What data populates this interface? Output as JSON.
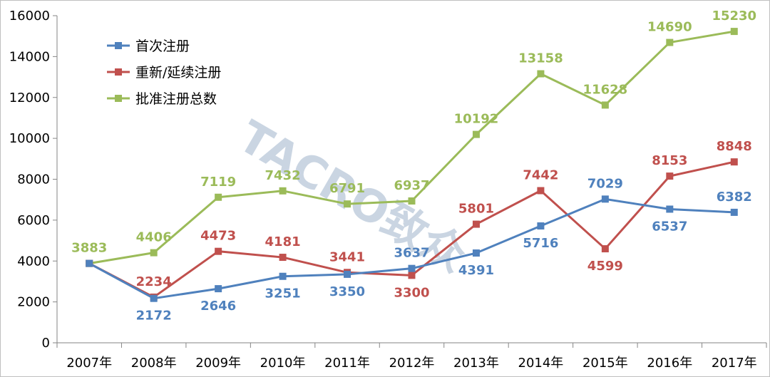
{
  "chart_data": {
    "type": "line",
    "categories": [
      "2007年",
      "2008年",
      "2009年",
      "2010年",
      "2011年",
      "2012年",
      "2013年",
      "2014年",
      "2015年",
      "2016年",
      "2017年"
    ],
    "series": [
      {
        "name": "首次注册",
        "color": "#4f81bd",
        "values": [
          3883,
          2172,
          2646,
          3251,
          3350,
          3637,
          4391,
          5716,
          7029,
          6537,
          6382
        ]
      },
      {
        "name": "重新/延续注册",
        "color": "#c0504d",
        "values": [
          3883,
          2234,
          4473,
          4181,
          3441,
          3300,
          5801,
          7442,
          4599,
          8153,
          8848
        ]
      },
      {
        "name": "批准注册总数",
        "color": "#9bbb59",
        "values": [
          3883,
          4406,
          7119,
          7432,
          6791,
          6937,
          10192,
          13158,
          11628,
          14690,
          15230
        ]
      }
    ],
    "data_labels": [
      {
        "series": 2,
        "texts": [
          "3883",
          "4406",
          "7119",
          "7432",
          "6791",
          "6937",
          "10192",
          "13158",
          "11628",
          "14690",
          "15230"
        ]
      },
      {
        "series": 1,
        "texts": [
          null,
          "2234",
          "4473",
          "4181",
          "3441",
          "3300",
          "5801",
          "7442",
          "4599",
          "8153",
          "8848"
        ]
      },
      {
        "series": 0,
        "texts": [
          null,
          "2172",
          "2646",
          "3251",
          "3350",
          "3637",
          "4391",
          "5716",
          "7029",
          "6537",
          "6382"
        ]
      }
    ],
    "ylim": [
      0,
      16000
    ],
    "yticks": [
      "0",
      "2000",
      "4000",
      "6000",
      "8000",
      "10000",
      "12000",
      "14000",
      "16000"
    ],
    "ytick_values": [
      0,
      2000,
      4000,
      6000,
      8000,
      10000,
      12000,
      14000,
      16000
    ],
    "grid": false,
    "legend_position": "top-left"
  },
  "watermark": {
    "text": "TACRO致众"
  }
}
